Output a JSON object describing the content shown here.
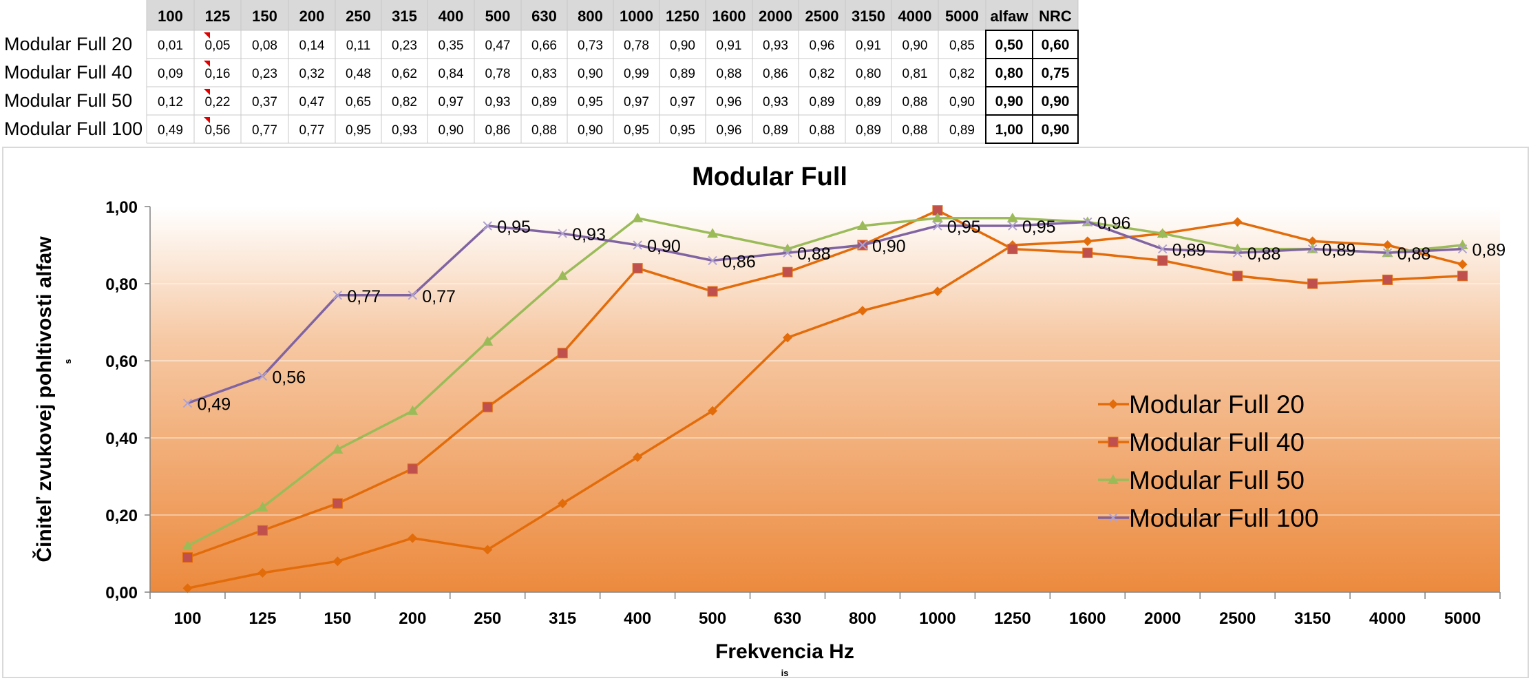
{
  "table": {
    "headers": [
      "100",
      "125",
      "150",
      "200",
      "250",
      "315",
      "400",
      "500",
      "630",
      "800",
      "1000",
      "1250",
      "1600",
      "2000",
      "2500",
      "3150",
      "4000",
      "5000",
      "alfaw",
      "NRC"
    ],
    "rows": [
      {
        "label": "Modular Full 20",
        "values": [
          "0,01",
          "0,05",
          "0,08",
          "0,14",
          "0,11",
          "0,23",
          "0,35",
          "0,47",
          "0,66",
          "0,73",
          "0,78",
          "0,90",
          "0,91",
          "0,93",
          "0,96",
          "0,91",
          "0,90",
          "0,85",
          "0,50",
          "0,60"
        ]
      },
      {
        "label": "Modular Full 40",
        "values": [
          "0,09",
          "0,16",
          "0,23",
          "0,32",
          "0,48",
          "0,62",
          "0,84",
          "0,78",
          "0,83",
          "0,90",
          "0,99",
          "0,89",
          "0,88",
          "0,86",
          "0,82",
          "0,80",
          "0,81",
          "0,82",
          "0,80",
          "0,75"
        ]
      },
      {
        "label": "Modular Full 50",
        "values": [
          "0,12",
          "0,22",
          "0,37",
          "0,47",
          "0,65",
          "0,82",
          "0,97",
          "0,93",
          "0,89",
          "0,95",
          "0,97",
          "0,97",
          "0,96",
          "0,93",
          "0,89",
          "0,89",
          "0,88",
          "0,90",
          "0,90",
          "0,90"
        ]
      },
      {
        "label": "Modular Full 100",
        "values": [
          "0,49",
          "0,56",
          "0,77",
          "0,77",
          "0,95",
          "0,93",
          "0,90",
          "0,86",
          "0,88",
          "0,90",
          "0,95",
          "0,95",
          "0,96",
          "0,89",
          "0,88",
          "0,89",
          "0,88",
          "0,89",
          "1,00",
          "0,90"
        ]
      }
    ]
  },
  "chart_data": {
    "type": "line",
    "title": "Modular Full",
    "xlabel": "Frekvencia Hz",
    "xlabel_sub": "is",
    "ylabel": "Činiteľ zvukovej pohltivosti   alfaw",
    "ylabel_sub": "s",
    "categories": [
      "100",
      "125",
      "150",
      "200",
      "250",
      "315",
      "400",
      "500",
      "630",
      "800",
      "1000",
      "1250",
      "1600",
      "2000",
      "2500",
      "3150",
      "4000",
      "5000"
    ],
    "ylim": [
      0,
      1
    ],
    "yticks": [
      "0,00",
      "0,20",
      "0,40",
      "0,60",
      "0,80",
      "1,00"
    ],
    "legend_position": "right",
    "series": [
      {
        "name": "Modular Full 20",
        "color": "#e36c0a",
        "marker": "diamond",
        "values": [
          0.01,
          0.05,
          0.08,
          0.14,
          0.11,
          0.23,
          0.35,
          0.47,
          0.66,
          0.73,
          0.78,
          0.9,
          0.91,
          0.93,
          0.96,
          0.91,
          0.9,
          0.85
        ]
      },
      {
        "name": "Modular Full 40",
        "color": "#e36c0a",
        "marker": "square",
        "values": [
          0.09,
          0.16,
          0.23,
          0.32,
          0.48,
          0.62,
          0.84,
          0.78,
          0.83,
          0.9,
          0.99,
          0.89,
          0.88,
          0.86,
          0.82,
          0.8,
          0.81,
          0.82
        ]
      },
      {
        "name": "Modular Full 50",
        "color": "#9bbb59",
        "marker": "triangle",
        "values": [
          0.12,
          0.22,
          0.37,
          0.47,
          0.65,
          0.82,
          0.97,
          0.93,
          0.89,
          0.95,
          0.97,
          0.97,
          0.96,
          0.93,
          0.89,
          0.89,
          0.88,
          0.9
        ]
      },
      {
        "name": "Modular Full 100",
        "color": "#8064a2",
        "marker": "x",
        "values": [
          0.49,
          0.56,
          0.77,
          0.77,
          0.95,
          0.93,
          0.9,
          0.86,
          0.88,
          0.9,
          0.95,
          0.95,
          0.96,
          0.89,
          0.88,
          0.89,
          0.88,
          0.89
        ],
        "data_labels": [
          "0,49",
          "0,56",
          "0,77",
          "0,77",
          "0,95",
          "0,93",
          "0,90",
          "0,86",
          "0,88",
          "0,90",
          "0,95",
          "0,95",
          "0,96",
          "0,89",
          "0,88",
          "0,89",
          "0,88",
          "0,89"
        ]
      }
    ]
  }
}
